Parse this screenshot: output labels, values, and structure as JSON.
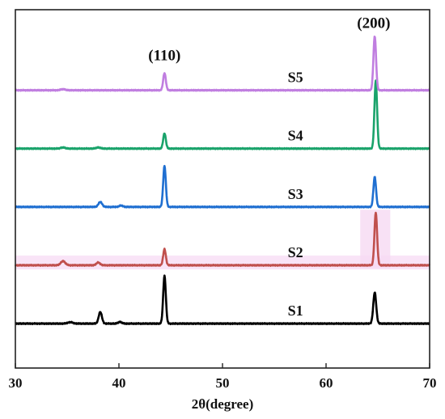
{
  "chart_data": {
    "type": "line",
    "xlabel": "2θ(degree)",
    "ylabel": "",
    "xlim": [
      30,
      70
    ],
    "xticks": [
      "30",
      "40",
      "50",
      "60",
      "70"
    ],
    "grid": false,
    "legend": "none",
    "annotations": [
      {
        "text": "(110)",
        "x": 44.4
      },
      {
        "text": "(200)",
        "x": 64.6
      }
    ],
    "series": [
      {
        "name": "S1",
        "color": "#000000",
        "baseline": 0,
        "peaks": [
          {
            "x": 35.3,
            "height": 0.05,
            "width": 0.35
          },
          {
            "x": 38.2,
            "height": 0.42,
            "width": 0.22
          },
          {
            "x": 40.1,
            "height": 0.06,
            "width": 0.25
          },
          {
            "x": 44.4,
            "height": 1.72,
            "width": 0.18
          },
          {
            "x": 64.7,
            "height": 1.12,
            "width": 0.2
          }
        ]
      },
      {
        "name": "S2",
        "color": "#c0504d",
        "baseline": 2.1,
        "peaks": [
          {
            "x": 34.6,
            "height": 0.15,
            "width": 0.3
          },
          {
            "x": 38.0,
            "height": 0.1,
            "width": 0.25
          },
          {
            "x": 44.4,
            "height": 0.58,
            "width": 0.18
          },
          {
            "x": 64.8,
            "height": 1.9,
            "width": 0.18
          }
        ]
      },
      {
        "name": "S3",
        "color": "#1f6fd1",
        "baseline": 4.2,
        "peaks": [
          {
            "x": 38.2,
            "height": 0.18,
            "width": 0.25
          },
          {
            "x": 40.2,
            "height": 0.05,
            "width": 0.25
          },
          {
            "x": 44.4,
            "height": 1.48,
            "width": 0.18
          },
          {
            "x": 64.7,
            "height": 1.08,
            "width": 0.18
          }
        ]
      },
      {
        "name": "S4",
        "color": "#1aa36b",
        "baseline": 6.3,
        "peaks": [
          {
            "x": 34.6,
            "height": 0.04,
            "width": 0.3
          },
          {
            "x": 38.0,
            "height": 0.04,
            "width": 0.3
          },
          {
            "x": 44.4,
            "height": 0.55,
            "width": 0.18
          },
          {
            "x": 64.8,
            "height": 2.45,
            "width": 0.18
          }
        ]
      },
      {
        "name": "S5",
        "color": "#c07ee0",
        "baseline": 8.4,
        "peaks": [
          {
            "x": 34.6,
            "height": 0.04,
            "width": 0.3
          },
          {
            "x": 44.4,
            "height": 0.62,
            "width": 0.18
          },
          {
            "x": 64.7,
            "height": 1.95,
            "width": 0.18
          }
        ]
      }
    ],
    "yrange": [
      -1.6,
      11.3
    ]
  }
}
